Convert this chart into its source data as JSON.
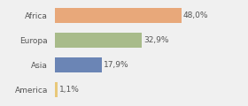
{
  "categories": [
    "America",
    "Asia",
    "Europa",
    "Africa"
  ],
  "values": [
    1.1,
    17.9,
    32.9,
    48.0
  ],
  "colors": [
    "#e8c87a",
    "#6b85b5",
    "#a8bb8a",
    "#e8a87a"
  ],
  "labels": [
    "1,1%",
    "17,9%",
    "32,9%",
    "48,0%"
  ],
  "background_color": "#f0f0f0",
  "label_fontsize": 6.5,
  "tick_fontsize": 6.5,
  "xlim": [
    0,
    62
  ],
  "bar_height": 0.62
}
